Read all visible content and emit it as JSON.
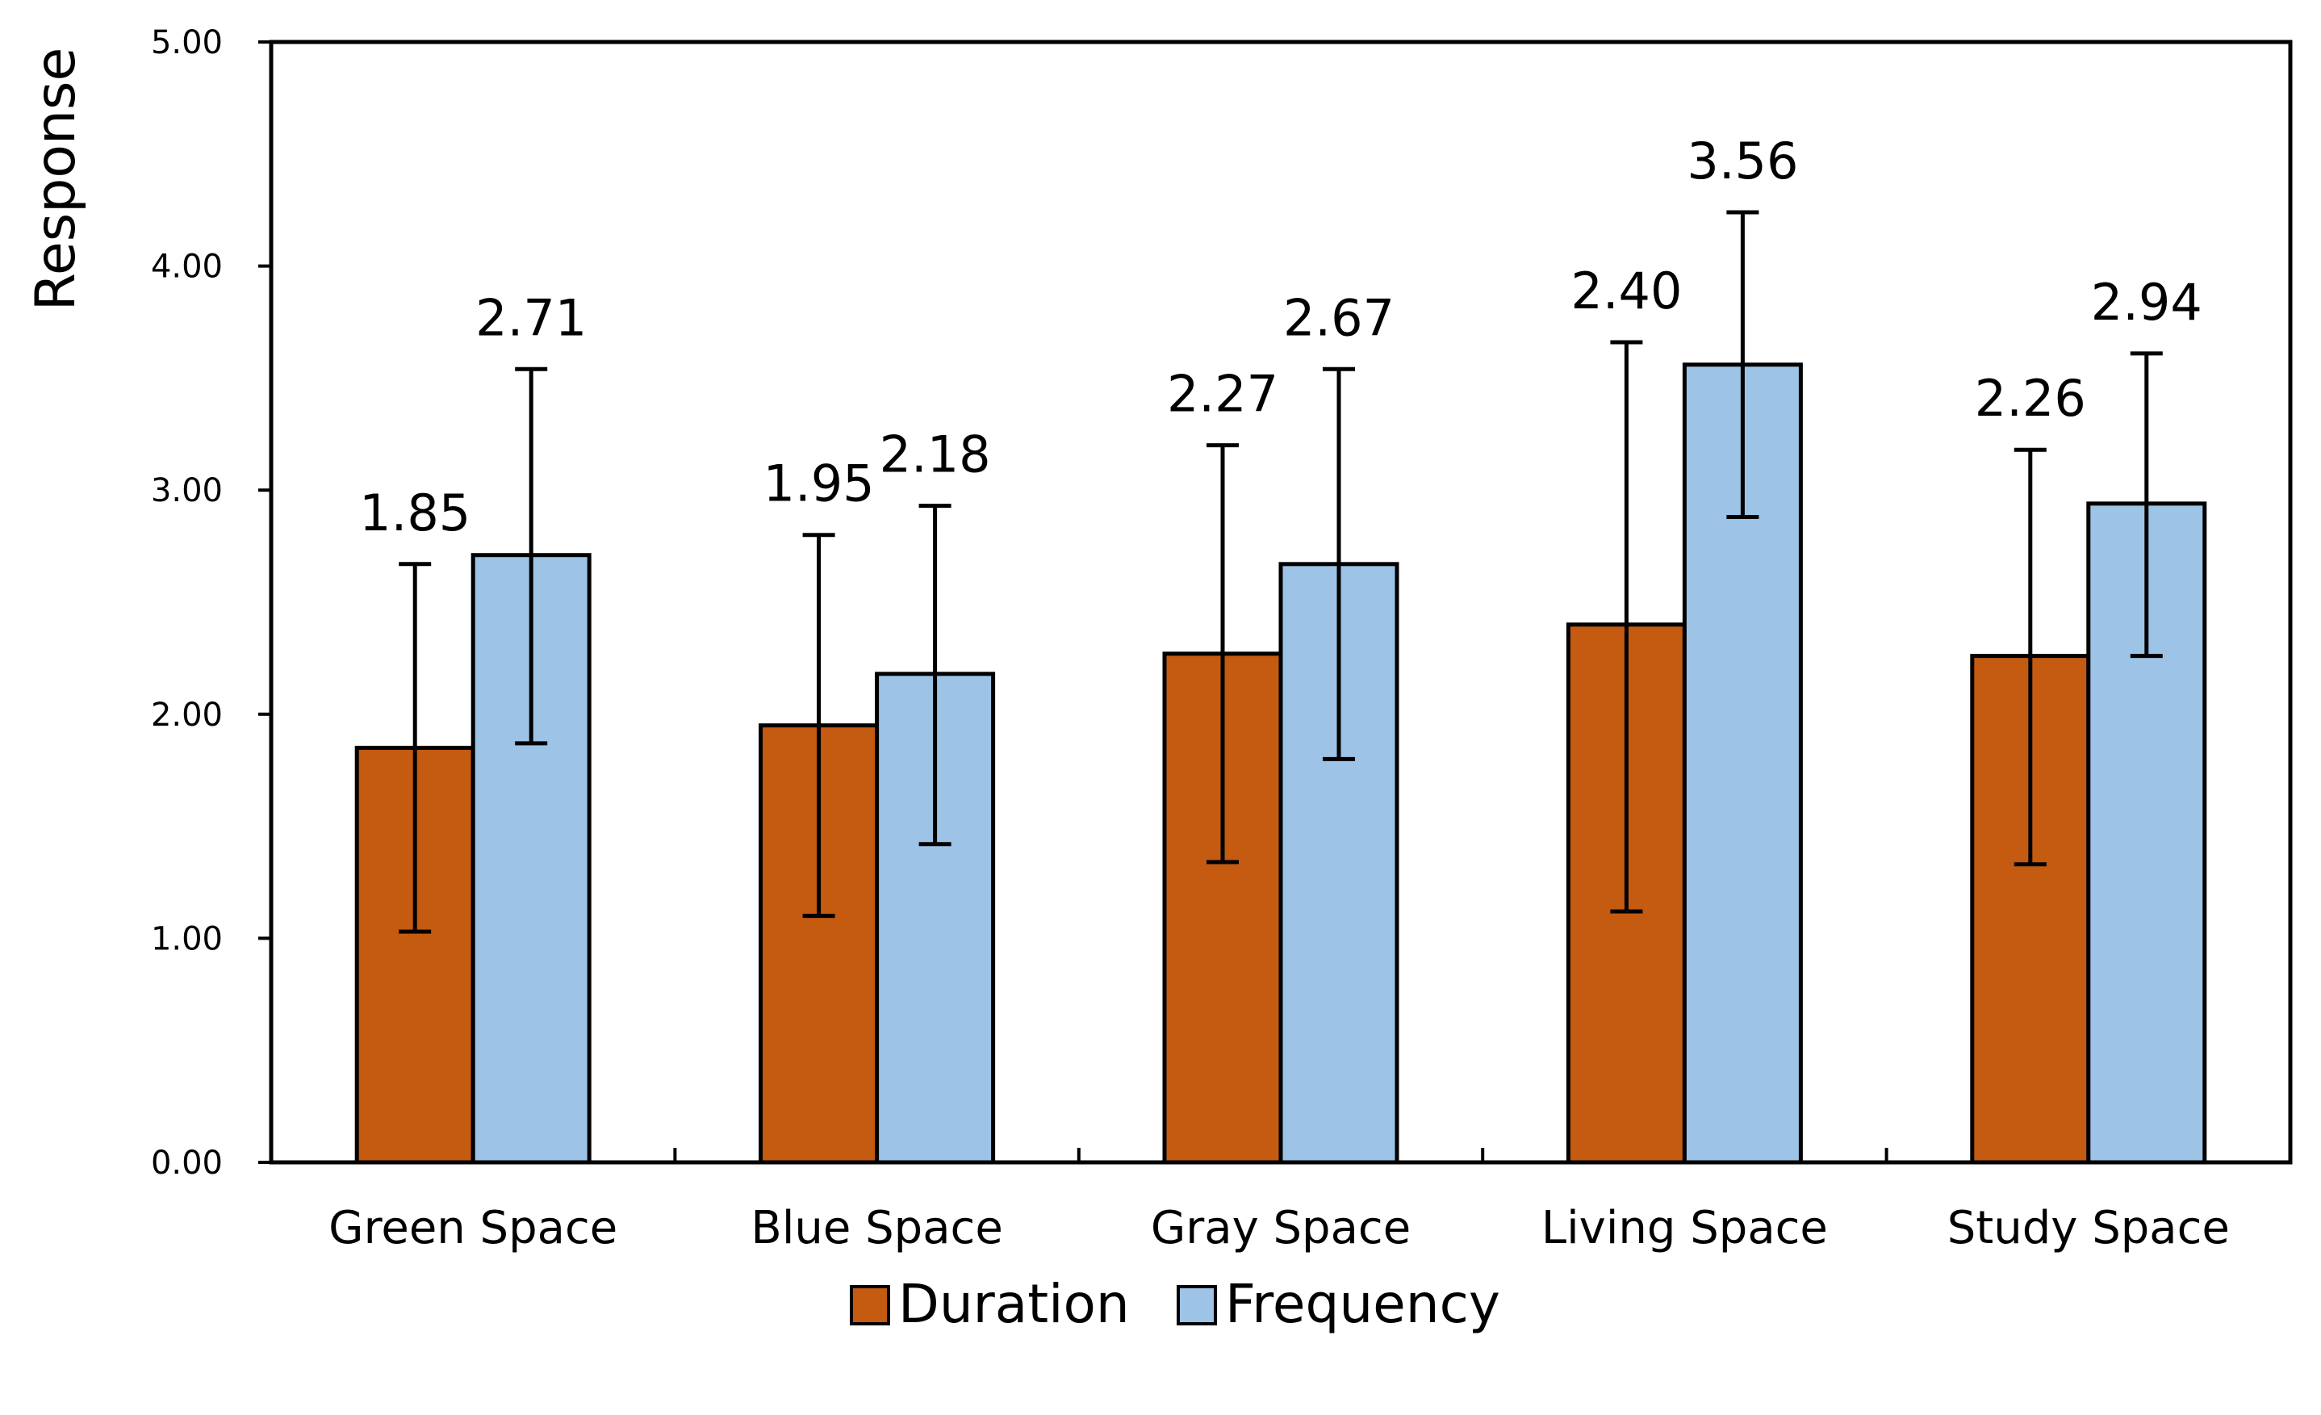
{
  "chart_data": {
    "type": "bar",
    "ylabel": "Response",
    "xlabel": "",
    "ylim": [
      0,
      5
    ],
    "yticks": [
      "0.00",
      "1.00",
      "2.00",
      "3.00",
      "4.00",
      "5.00"
    ],
    "grid": false,
    "legend_position": "bottom-center",
    "categories": [
      "Green Space",
      "Blue Space",
      "Gray Space",
      "Living Space",
      "Study Space"
    ],
    "series": [
      {
        "name": "Duration",
        "color": "#C55A11",
        "values": [
          1.85,
          1.95,
          2.27,
          2.4,
          2.26
        ],
        "labels": [
          "1.85",
          "1.95",
          "2.27",
          "2.40",
          "2.26"
        ],
        "error_low": [
          1.03,
          1.1,
          1.34,
          1.12,
          1.33
        ],
        "error_high": [
          2.67,
          2.8,
          3.2,
          3.66,
          3.18
        ]
      },
      {
        "name": "Frequency",
        "color": "#9DC3E6",
        "values": [
          2.71,
          2.18,
          2.67,
          3.56,
          2.94
        ],
        "labels": [
          "2.71",
          "2.18",
          "2.67",
          "3.56",
          "2.94"
        ],
        "error_low": [
          1.87,
          1.42,
          1.8,
          2.88,
          2.26
        ],
        "error_high": [
          3.54,
          2.93,
          3.54,
          4.24,
          3.61
        ]
      }
    ]
  }
}
